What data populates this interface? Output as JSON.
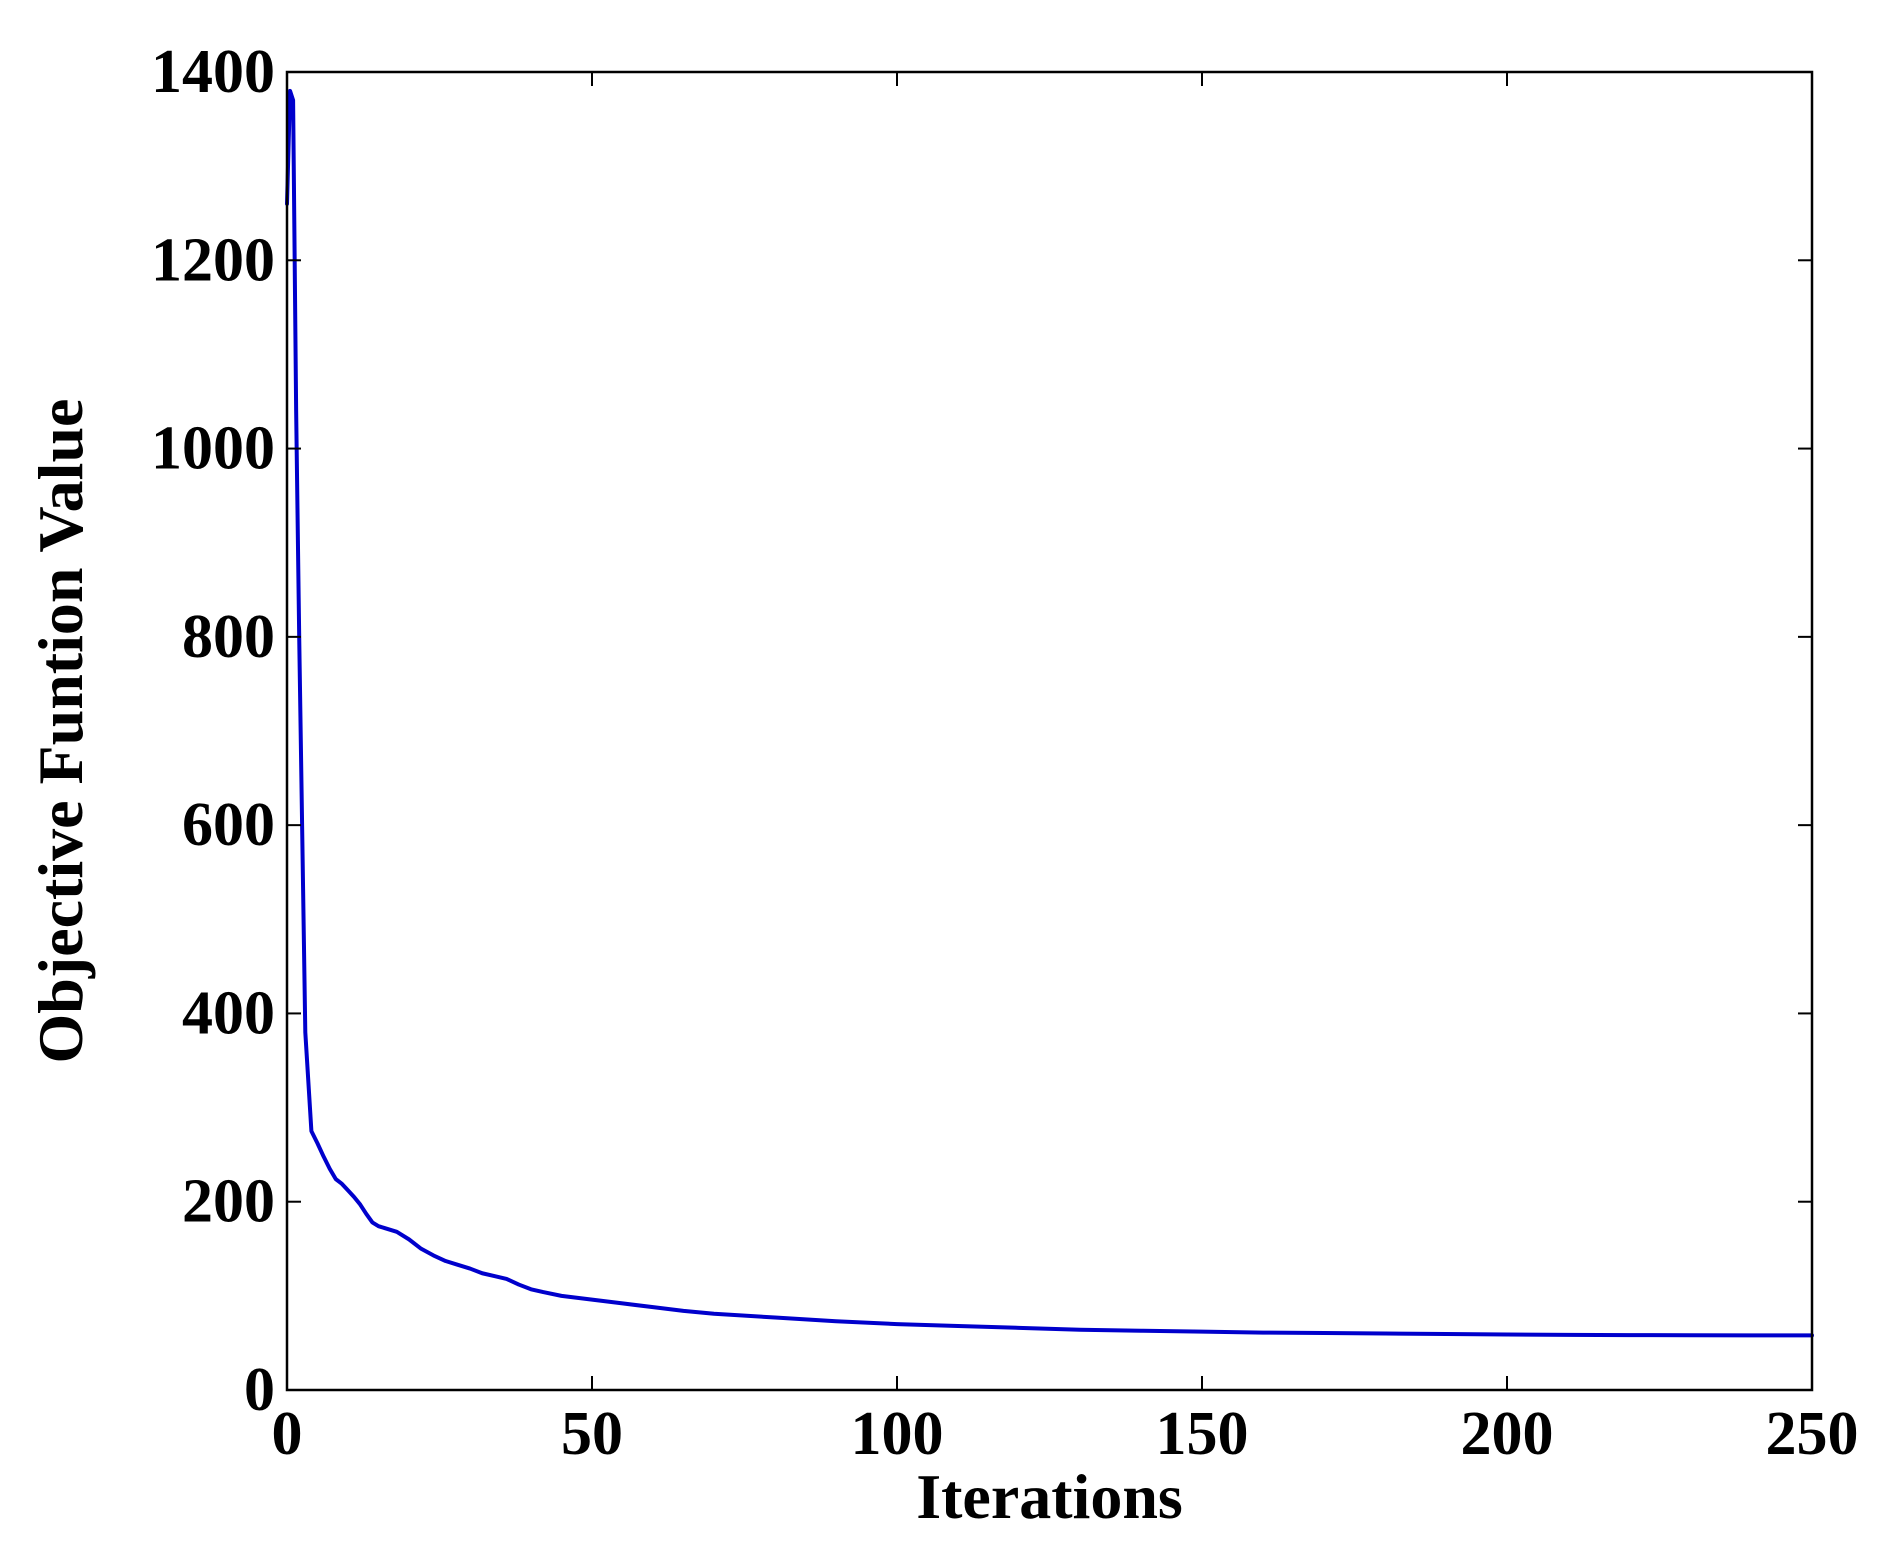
{
  "chart_data": {
    "type": "line",
    "title": "",
    "xlabel": "Iterations",
    "ylabel": "Objective Funtion Value",
    "xlim": [
      0,
      250
    ],
    "ylim": [
      0,
      1400
    ],
    "xticks": [
      0,
      50,
      100,
      150,
      200,
      250
    ],
    "yticks": [
      0,
      200,
      400,
      600,
      800,
      1000,
      1200,
      1400
    ],
    "grid": false,
    "legend": "none",
    "series": [
      {
        "color": "#0000cc",
        "x": [
          0,
          0.5,
          1,
          1.5,
          2,
          2.5,
          3,
          4,
          5,
          6,
          7,
          8,
          9,
          10,
          11,
          12,
          13,
          14,
          15,
          16,
          18,
          20,
          22,
          24,
          26,
          28,
          30,
          32,
          34,
          36,
          38,
          40,
          42,
          45,
          50,
          55,
          60,
          65,
          70,
          80,
          90,
          100,
          110,
          120,
          130,
          140,
          150,
          160,
          170,
          180,
          190,
          200,
          210,
          220,
          230,
          240,
          250
        ],
        "y": [
          1260,
          1380,
          1370,
          1040,
          800,
          590,
          380,
          275,
          262,
          248,
          235,
          224,
          219,
          212,
          205,
          197,
          187,
          178,
          174,
          172,
          168,
          160,
          150,
          143,
          137,
          133,
          129,
          124,
          121,
          118,
          112,
          107,
          104,
          100,
          96,
          92,
          88,
          84,
          81,
          77,
          73,
          70,
          68,
          66,
          64,
          63,
          62,
          61,
          60.5,
          60,
          59.5,
          59,
          58.5,
          58.3,
          58.1,
          58,
          58
        ]
      }
    ]
  }
}
